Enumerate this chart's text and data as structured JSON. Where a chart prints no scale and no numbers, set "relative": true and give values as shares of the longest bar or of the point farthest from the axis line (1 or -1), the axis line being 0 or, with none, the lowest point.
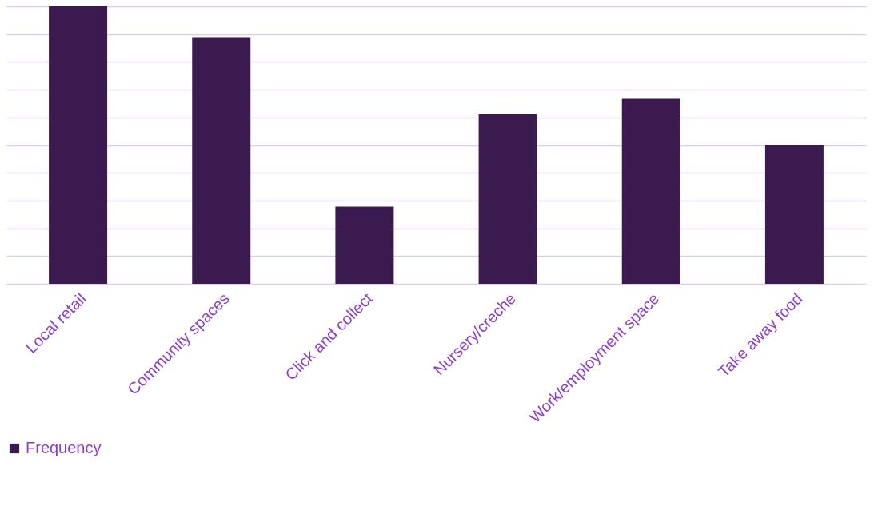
{
  "chart_data": {
    "type": "bar",
    "relative": true,
    "categories": [
      "Local retail",
      "Community spaces",
      "Click and collect",
      "Nursery/creche",
      "Work/employment space",
      "Take away food"
    ],
    "series": [
      {
        "name": "Frequency",
        "color": "#3b1a4f",
        "values": [
          1,
          0.889,
          0.278,
          0.611,
          0.667,
          0.5
        ]
      }
    ],
    "grid": "y",
    "legend": "bottom"
  }
}
